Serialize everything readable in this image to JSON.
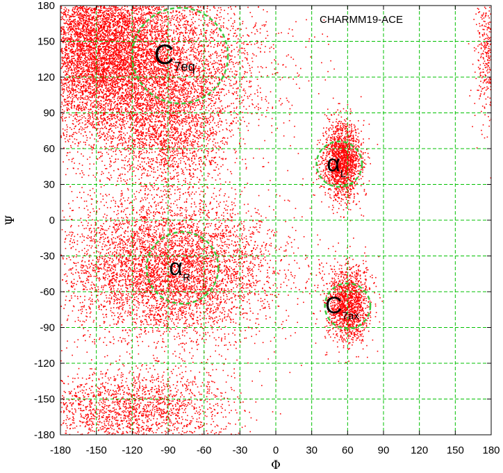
{
  "chart_data": {
    "type": "scatter",
    "title": "CHARMM19-ACE",
    "xlabel": "Φ",
    "ylabel": "Ψ",
    "xlim": [
      -180,
      180
    ],
    "ylim": [
      -180,
      180
    ],
    "xticks": [
      -180,
      -150,
      -120,
      -90,
      -60,
      -30,
      0,
      30,
      60,
      90,
      120,
      150,
      180
    ],
    "yticks": [
      -180,
      -150,
      -120,
      -90,
      -60,
      -30,
      0,
      30,
      60,
      90,
      120,
      150,
      180
    ],
    "grid": true,
    "point_color": "#ff0000",
    "grid_color": "#00c000",
    "circle_color": "#3cc83c",
    "density_regions": [
      {
        "center": [
          -150,
          150
        ],
        "spread": [
          30,
          40
        ],
        "weight": 0.25
      },
      {
        "center": [
          -100,
          130
        ],
        "spread": [
          45,
          35
        ],
        "weight": 0.2
      },
      {
        "center": [
          -90,
          70
        ],
        "spread": [
          25,
          25
        ],
        "weight": 0.06
      },
      {
        "center": [
          -90,
          -40
        ],
        "spread": [
          45,
          30
        ],
        "weight": 0.22
      },
      {
        "center": [
          -120,
          -160
        ],
        "spread": [
          40,
          18
        ],
        "weight": 0.08
      },
      {
        "center": [
          55,
          50
        ],
        "spread": [
          8,
          16
        ],
        "weight": 0.07
      },
      {
        "center": [
          60,
          -70
        ],
        "spread": [
          9,
          16
        ],
        "weight": 0.06
      },
      {
        "center": [
          178,
          140
        ],
        "spread": [
          6,
          30
        ],
        "weight": 0.02
      }
    ],
    "regions": [
      {
        "label": "C",
        "sub": "7eq",
        "phi": -80,
        "psi": 138,
        "radius_deg": 40
      },
      {
        "label": "α",
        "sub": "L",
        "phi": 53,
        "psi": 47,
        "radius_deg": 19
      },
      {
        "label": "α",
        "sub": "R",
        "phi": -78,
        "psi": -40,
        "radius_deg": 30
      },
      {
        "label": "C",
        "sub": "7ax",
        "phi": 60,
        "psi": -72,
        "radius_deg": 19
      }
    ]
  }
}
